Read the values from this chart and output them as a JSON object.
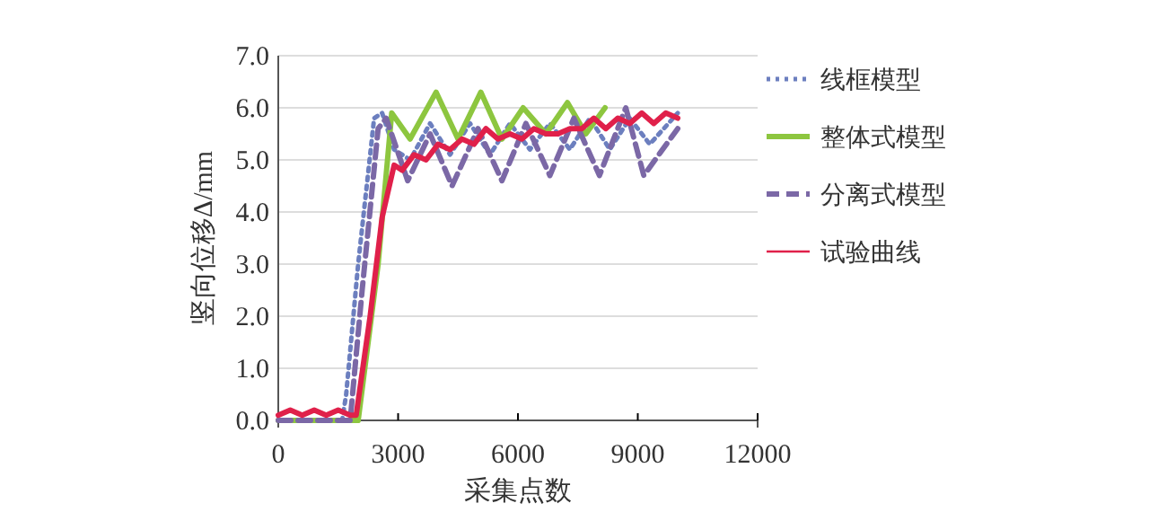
{
  "chart_data": {
    "type": "line",
    "xlabel": "采集点数",
    "ylabel": "竖向位移Δ/mm",
    "xlim": [
      0,
      12000
    ],
    "xticks": [
      0,
      3000,
      6000,
      9000,
      12000
    ],
    "ylim": [
      0,
      7
    ],
    "yticks": [
      {
        "value": 0,
        "label": "0.0"
      },
      {
        "value": 1,
        "label": "1.0"
      },
      {
        "value": 2,
        "label": "2.0"
      },
      {
        "value": 3,
        "label": "3.0"
      },
      {
        "value": 4,
        "label": "4.0"
      },
      {
        "value": 5,
        "label": "5.0"
      },
      {
        "value": 6,
        "label": "6.0"
      },
      {
        "value": 7,
        "label": "7.0"
      }
    ],
    "grid": "y",
    "legend": "right",
    "series": [
      {
        "name": "线框模型",
        "color": "#6c7fbf",
        "line_style": "dotted",
        "x": [
          0,
          1600,
          1700,
          2000,
          2400,
          2600,
          2900,
          3300,
          3800,
          4300,
          4800,
          5300,
          5800,
          6300,
          6800,
          7300,
          7800,
          8300,
          8800,
          9300,
          10000
        ],
        "values": [
          0,
          0,
          0.5,
          3.0,
          5.8,
          5.9,
          5.2,
          5.0,
          5.7,
          5.1,
          5.7,
          5.1,
          5.7,
          5.2,
          5.7,
          5.2,
          5.8,
          5.2,
          5.8,
          5.3,
          5.9
        ]
      },
      {
        "name": "整体式模型",
        "color": "#8dc63f",
        "line_style": "solid",
        "x": [
          0,
          2000,
          2500,
          2840,
          3300,
          3950,
          4500,
          5070,
          5600,
          6130,
          6700,
          7240,
          7700,
          8180
        ],
        "values": [
          0,
          0,
          3.0,
          5.9,
          5.4,
          6.3,
          5.4,
          6.3,
          5.4,
          6.0,
          5.5,
          6.1,
          5.5,
          6.0
        ]
      },
      {
        "name": "分离式模型",
        "color": "#7b68a6",
        "line_style": "dashed",
        "x": [
          0,
          1800,
          2100,
          2500,
          2700,
          3240,
          3800,
          4350,
          5000,
          5600,
          6200,
          6800,
          7400,
          8040,
          8700,
          9150,
          10000
        ],
        "values": [
          0,
          0,
          2.5,
          5.6,
          5.8,
          4.6,
          5.5,
          4.5,
          5.6,
          4.6,
          5.7,
          4.7,
          5.8,
          4.7,
          6.0,
          4.7,
          5.6
        ]
      },
      {
        "name": "试验曲线",
        "color": "#e0204a",
        "line_style": "solid",
        "x": [
          0,
          300,
          600,
          900,
          1200,
          1500,
          1800,
          1950,
          2300,
          2600,
          2900,
          3100,
          3400,
          3700,
          4000,
          4300,
          4600,
          4900,
          5200,
          5500,
          5800,
          6100,
          6400,
          6700,
          7000,
          7300,
          7600,
          7900,
          8200,
          8500,
          8800,
          9100,
          9400,
          9700,
          10000
        ],
        "values": [
          0.1,
          0.2,
          0.1,
          0.2,
          0.1,
          0.2,
          0.1,
          0.1,
          2.0,
          3.9,
          4.9,
          4.8,
          5.1,
          5.0,
          5.3,
          5.2,
          5.4,
          5.3,
          5.6,
          5.4,
          5.5,
          5.4,
          5.6,
          5.5,
          5.5,
          5.6,
          5.6,
          5.8,
          5.6,
          5.8,
          5.7,
          5.9,
          5.7,
          5.9,
          5.8
        ]
      }
    ]
  }
}
